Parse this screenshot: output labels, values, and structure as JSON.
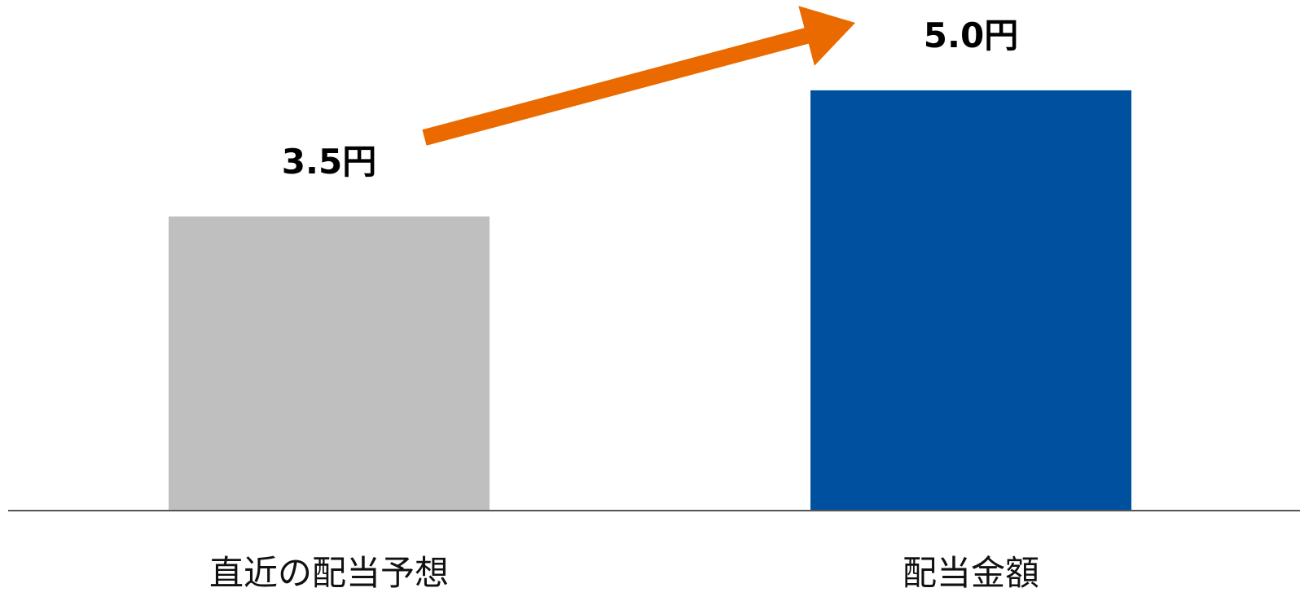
{
  "chart_data": {
    "type": "bar",
    "categories": [
      "直近の配当予想",
      "配当金額"
    ],
    "values": [
      3.5,
      5.0
    ],
    "data_labels": [
      "3.5円",
      "5.0円"
    ],
    "ylim": [
      0,
      5.6
    ],
    "grid": false,
    "legend": "none",
    "annotations": [
      {
        "kind": "arrow",
        "from_category": "直近の配当予想",
        "to_category": "配当金額",
        "direction": "up-right"
      }
    ],
    "colors": {
      "bars": [
        "#bfbfbf",
        "#0050a0"
      ],
      "arrow": "#ea6a00",
      "axis": "#555555"
    }
  }
}
